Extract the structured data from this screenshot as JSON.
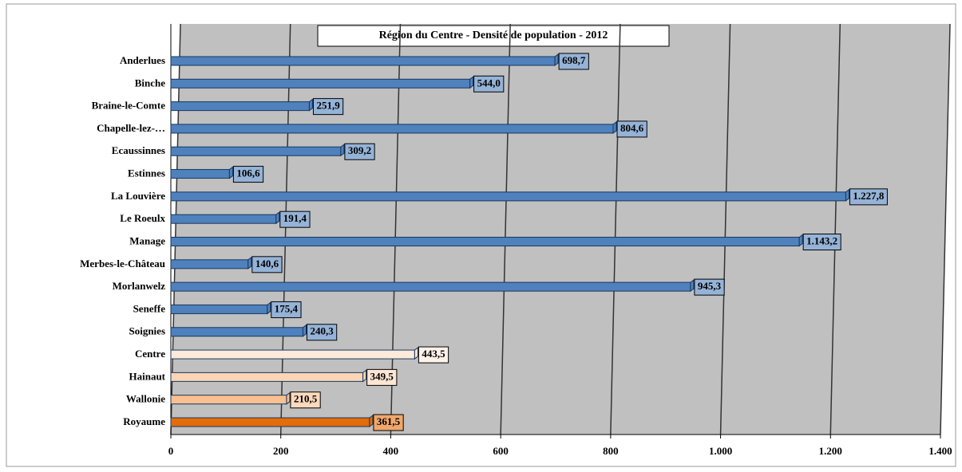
{
  "chart_data": {
    "type": "bar",
    "orientation": "horizontal",
    "title": "Région du Centre - Densité de population - 2012",
    "categories": [
      "Anderlues",
      "Binche",
      "Braine-le-Comte",
      "Chapelle-lez-…",
      "Ecaussinnes",
      "Estinnes",
      "La Louvière",
      "Le Roeulx",
      "Manage",
      "Merbes-le-Château",
      "Morlanwelz",
      "Seneffe",
      "Soignies",
      "Centre",
      "Hainaut",
      "Wallonie",
      "Royaume"
    ],
    "values": [
      698.7,
      544.0,
      251.9,
      804.6,
      309.2,
      106.6,
      1227.8,
      191.4,
      1143.2,
      140.6,
      945.3,
      175.4,
      240.3,
      443.5,
      349.5,
      210.5,
      361.5
    ],
    "value_labels": [
      "698,7",
      "544,0",
      "251,9",
      "804,6",
      "309,2",
      "106,6",
      "1.227,8",
      "191,4",
      "1.143,2",
      "140,6",
      "945,3",
      "175,4",
      "240,3",
      "443,5",
      "349,5",
      "210,5",
      "361,5"
    ],
    "colors": [
      "#4f81bd",
      "#4f81bd",
      "#4f81bd",
      "#4f81bd",
      "#4f81bd",
      "#4f81bd",
      "#4f81bd",
      "#4f81bd",
      "#4f81bd",
      "#4f81bd",
      "#4f81bd",
      "#4f81bd",
      "#4f81bd",
      "#fdeada",
      "#fcd5b5",
      "#fac090",
      "#e46c0a"
    ],
    "xlim": [
      0,
      1400
    ],
    "xticks": [
      0,
      200,
      400,
      600,
      800,
      {
        "value": 1000,
        "label": "1.000"
      },
      {
        "value": 1200,
        "label": "1.200"
      },
      {
        "value": 1400,
        "label": "1.400"
      }
    ],
    "grid": true
  }
}
